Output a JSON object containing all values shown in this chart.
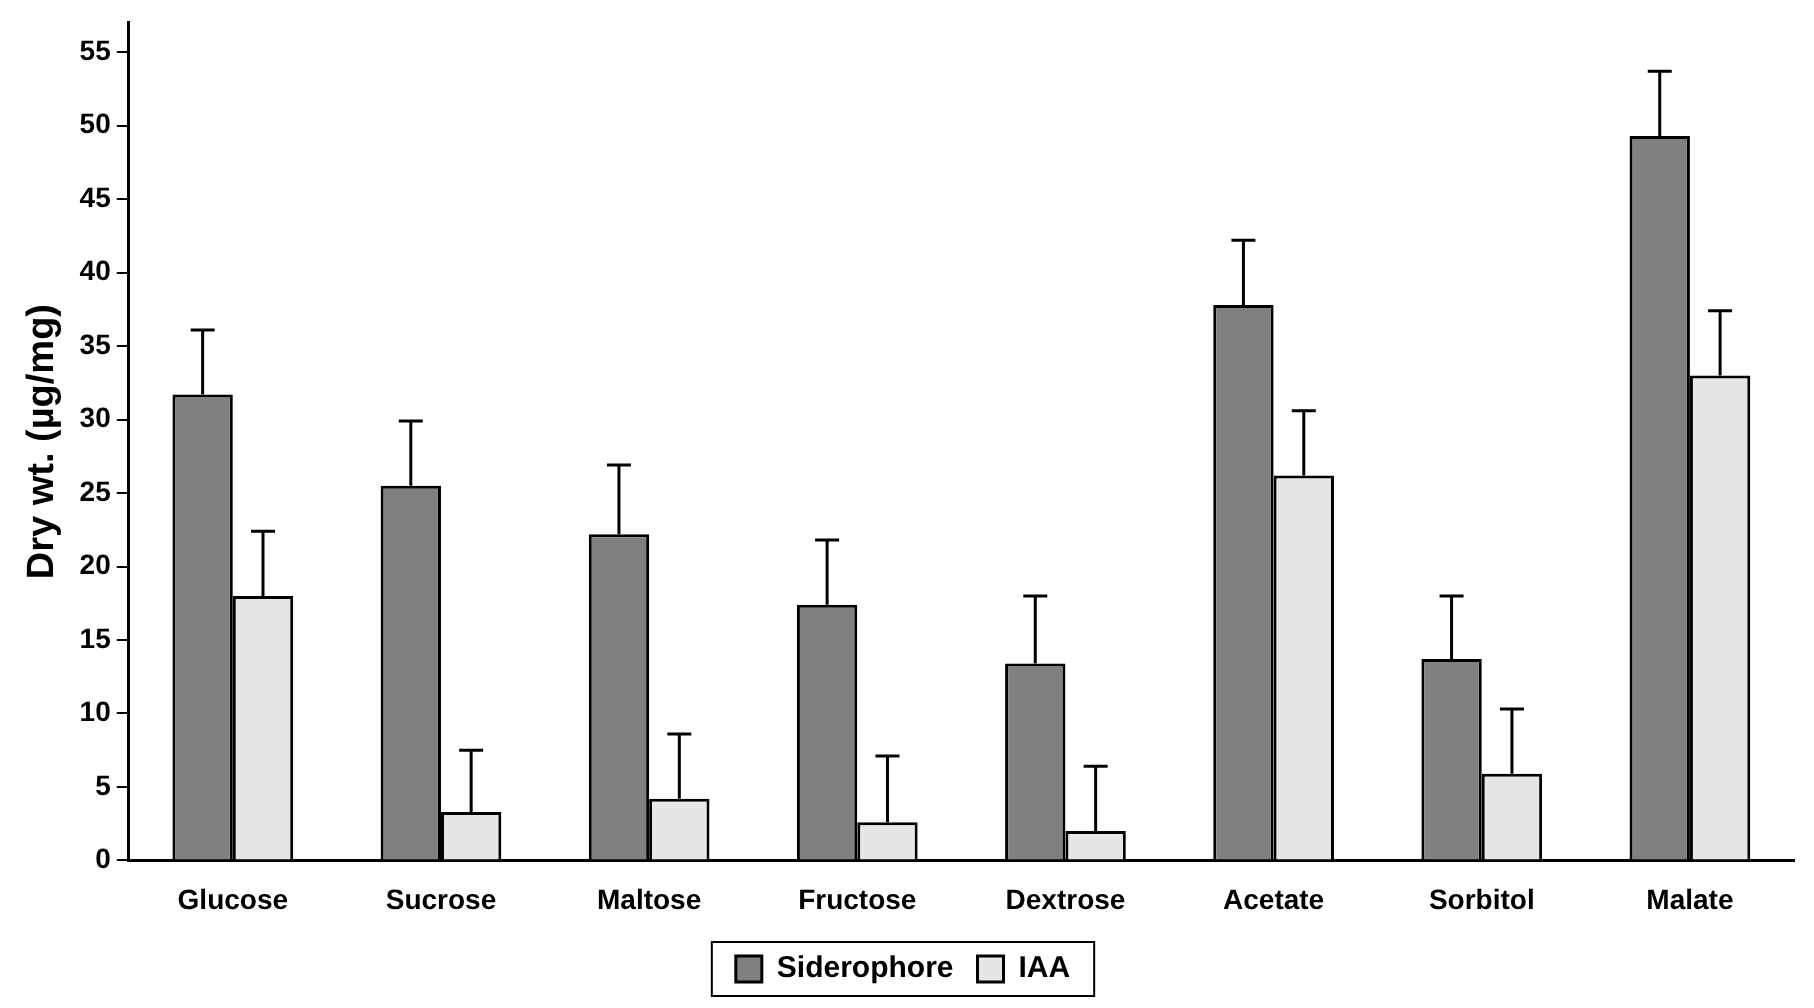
{
  "chart_data": {
    "type": "bar",
    "ylabel": "Dry wt. (µg/mg)",
    "categories": [
      "Glucose",
      "Sucrose",
      "Maltose",
      "Fructose",
      "Dextrose",
      "Acetate",
      "Sorbitol",
      "Malate"
    ],
    "series": [
      {
        "name": "Siderophore",
        "color": "#808080",
        "values": [
          31.7,
          25.5,
          22.2,
          17.4,
          13.4,
          37.8,
          13.7,
          49.3
        ],
        "errors": [
          [
            31.7,
            36.1
          ],
          [
            25.5,
            29.9
          ],
          [
            22.2,
            26.9
          ],
          [
            17.4,
            21.8
          ],
          [
            13.4,
            18.0
          ],
          [
            37.8,
            42.2
          ],
          [
            13.7,
            18.0
          ],
          [
            49.3,
            53.7
          ]
        ]
      },
      {
        "name": "IAA",
        "color": "#e6e6e6",
        "values": [
          18.0,
          3.3,
          4.2,
          2.6,
          2.0,
          26.2,
          5.9,
          33.0
        ],
        "errors": [
          [
            18.0,
            22.4
          ],
          [
            3.3,
            7.5
          ],
          [
            4.2,
            8.6
          ],
          [
            2.6,
            7.1
          ],
          [
            2.0,
            6.4
          ],
          [
            26.2,
            30.6
          ],
          [
            5.9,
            10.3
          ],
          [
            33.0,
            37.4
          ]
        ]
      }
    ],
    "ylim": [
      0,
      57
    ],
    "yticks": [
      0,
      5,
      10,
      15,
      20,
      25,
      30,
      35,
      40,
      45,
      50,
      55
    ],
    "grid": false,
    "legend": "bottom"
  }
}
